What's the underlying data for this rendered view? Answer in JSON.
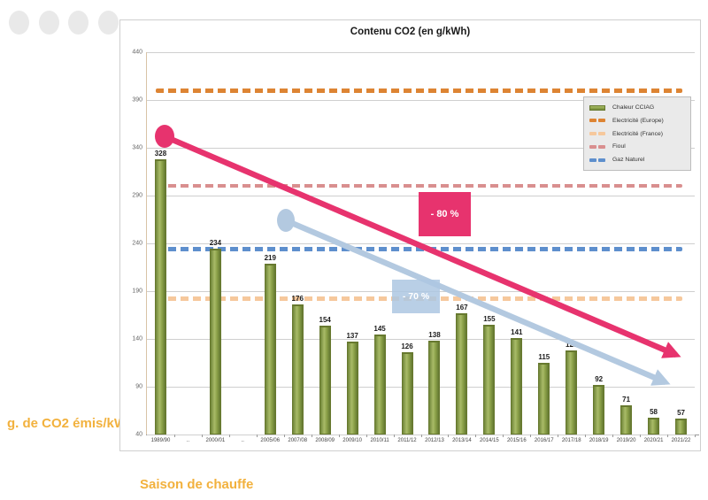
{
  "page": {
    "axis_title_left": "g. de CO2 émis/kWh",
    "axis_title_bottom": "Saison de chauffe"
  },
  "chart_data": {
    "type": "bar",
    "title": "Contenu CO2 (en g/kWh)",
    "xlabel": "Saison de chauffe",
    "ylabel": "g. de CO2 émis/kWh",
    "ylim": [
      40,
      440
    ],
    "yticks": [
      40,
      90,
      140,
      190,
      240,
      290,
      340,
      390,
      440
    ],
    "grid": true,
    "categories": [
      "1989/90",
      "..",
      "2000/01",
      "..",
      "2005/06",
      "2007/08",
      "2008/09",
      "2009/10",
      "2010/11",
      "2011/12",
      "2012/13",
      "2013/14",
      "2014/15",
      "2015/16",
      "2016/17",
      "2017/18",
      "2018/19",
      "2019/20",
      "2020/21",
      "2021/22"
    ],
    "series": [
      {
        "name": "Chaleur CCIAG",
        "values": [
          328,
          null,
          234,
          null,
          219,
          176,
          154,
          137,
          145,
          126,
          138,
          167,
          155,
          141,
          115,
          128,
          92,
          71,
          58,
          57
        ],
        "color": "#8ba149"
      }
    ],
    "reference_lines": [
      {
        "label": "Electricité (Europe)",
        "value": 400,
        "color": "#dd8433",
        "thickness": 5
      },
      {
        "label": "Fioul",
        "value": 300,
        "color": "#d98f8f",
        "thickness": 4
      },
      {
        "label": "Gaz Naturel",
        "value": 234,
        "color": "#5e8fcd",
        "thickness": 5
      },
      {
        "label": "Electricité (France)",
        "value": 182,
        "color": "#f6c89c",
        "thickness": 5
      }
    ],
    "legend": {
      "position": "right-inside",
      "entries": [
        {
          "label": "Chaleur CCIAG",
          "swatch": "bar",
          "color": "#8ba149"
        },
        {
          "label": "Electricité (Europe)",
          "swatch": "dash",
          "color": "#dd8433"
        },
        {
          "label": "Electricité (France)",
          "swatch": "dash",
          "color": "#f6c89c"
        },
        {
          "label": "Fioul",
          "swatch": "dash",
          "color": "#d98f8f"
        },
        {
          "label": "Gaz Naturel",
          "swatch": "dash",
          "color": "#5e8fcd"
        }
      ]
    },
    "annotations": [
      {
        "text": "- 80 %",
        "box_color": "#e7336e",
        "arrow_color": "#e7336e"
      },
      {
        "text": "- 70 %",
        "box_color": "#adc7e2",
        "arrow_color": "#b3c9e0"
      }
    ]
  }
}
